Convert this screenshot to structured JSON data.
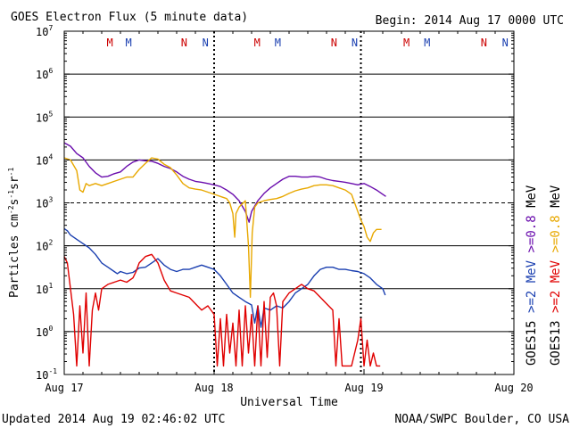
{
  "chart_data": {
    "type": "line",
    "title": "GOES Electron Flux (5 minute data)",
    "begin_label": "Begin: 2014 Aug 17 0000 UTC",
    "xlabel": "Universal Time",
    "ylabel": "Particles cm",
    "ylabel_sup1": "-2",
    "ylabel_mid1": "s",
    "ylabel_sup2": "-1",
    "ylabel_mid2": "sr",
    "ylabel_sup3": "-1",
    "xlim": [
      0,
      72
    ],
    "ylim_log10": [
      -1,
      7
    ],
    "x_ticks": [
      {
        "t": 0,
        "label": "Aug 17"
      },
      {
        "t": 24,
        "label": "Aug 18"
      },
      {
        "t": 48,
        "label": "Aug 19"
      },
      {
        "t": 72,
        "label": "Aug 20"
      }
    ],
    "y_ticks": [
      {
        "exp": 7,
        "base": "10",
        "sup": "7"
      },
      {
        "exp": 6,
        "base": "10",
        "sup": "6"
      },
      {
        "exp": 5,
        "base": "10",
        "sup": "5"
      },
      {
        "exp": 4,
        "base": "10",
        "sup": "4"
      },
      {
        "exp": 3,
        "base": "10",
        "sup": "3"
      },
      {
        "exp": 2,
        "base": "10",
        "sup": "2"
      },
      {
        "exp": 1,
        "base": "10",
        "sup": "1"
      },
      {
        "exp": 0,
        "base": "10",
        "sup": "0"
      },
      {
        "exp": -1,
        "base": "10",
        "sup": "-1"
      }
    ],
    "solid_gridlines_exp": [
      6,
      5,
      4,
      2,
      1,
      0
    ],
    "dashed_gridline_exp": 3,
    "day_dividers_t": [
      24,
      47.5
    ],
    "noon_markers": [
      {
        "t": 7.3,
        "label": "M",
        "color": "#cc0000"
      },
      {
        "t": 10.3,
        "label": "M",
        "color": "#1a3fb0"
      },
      {
        "t": 19.2,
        "label": "N",
        "color": "#cc0000"
      },
      {
        "t": 22.6,
        "label": "N",
        "color": "#1a3fb0"
      },
      {
        "t": 30.9,
        "label": "M",
        "color": "#cc0000"
      },
      {
        "t": 34.2,
        "label": "M",
        "color": "#1a3fb0"
      },
      {
        "t": 43.2,
        "label": "N",
        "color": "#cc0000"
      },
      {
        "t": 46.5,
        "label": "N",
        "color": "#1a3fb0"
      },
      {
        "t": 54.8,
        "label": "M",
        "color": "#cc0000"
      },
      {
        "t": 58.1,
        "label": "M",
        "color": "#1a3fb0"
      },
      {
        "t": 67.2,
        "label": "N",
        "color": "#cc0000"
      },
      {
        "t": 70.6,
        "label": "N",
        "color": "#1a3fb0"
      }
    ],
    "series": [
      {
        "name": "GOES15 >=0.8 MeV",
        "color": "#6a0dad",
        "points": [
          [
            0,
            4.4
          ],
          [
            1,
            4.32
          ],
          [
            2,
            4.15
          ],
          [
            3,
            4.05
          ],
          [
            4,
            3.85
          ],
          [
            5,
            3.7
          ],
          [
            6,
            3.6
          ],
          [
            7,
            3.62
          ],
          [
            8,
            3.68
          ],
          [
            9,
            3.72
          ],
          [
            10,
            3.85
          ],
          [
            11,
            3.95
          ],
          [
            12,
            4.0
          ],
          [
            13,
            3.98
          ],
          [
            14,
            3.97
          ],
          [
            15,
            3.92
          ],
          [
            16,
            3.85
          ],
          [
            17,
            3.8
          ],
          [
            18,
            3.72
          ],
          [
            19,
            3.62
          ],
          [
            20,
            3.55
          ],
          [
            21,
            3.5
          ],
          [
            22,
            3.48
          ],
          [
            23,
            3.45
          ],
          [
            24,
            3.42
          ],
          [
            25,
            3.38
          ],
          [
            26,
            3.3
          ],
          [
            27,
            3.2
          ],
          [
            28,
            3.05
          ],
          [
            29,
            2.8
          ],
          [
            29.6,
            2.55
          ],
          [
            30,
            2.8
          ],
          [
            31,
            3.05
          ],
          [
            32,
            3.22
          ],
          [
            33,
            3.35
          ],
          [
            34,
            3.45
          ],
          [
            35,
            3.55
          ],
          [
            36,
            3.62
          ],
          [
            37,
            3.62
          ],
          [
            38,
            3.6
          ],
          [
            39,
            3.6
          ],
          [
            40,
            3.62
          ],
          [
            41,
            3.6
          ],
          [
            42,
            3.55
          ],
          [
            43,
            3.52
          ],
          [
            44,
            3.5
          ],
          [
            45,
            3.48
          ],
          [
            46,
            3.45
          ],
          [
            47,
            3.42
          ],
          [
            48,
            3.45
          ],
          [
            49,
            3.38
          ],
          [
            50,
            3.3
          ],
          [
            51,
            3.2
          ],
          [
            51.5,
            3.15
          ]
        ]
      },
      {
        "name": "GOES13 >=0.8 MeV",
        "color": "#e8a800",
        "points": [
          [
            0,
            4.05
          ],
          [
            1,
            4.0
          ],
          [
            2,
            3.75
          ],
          [
            2.5,
            3.3
          ],
          [
            3,
            3.25
          ],
          [
            3.5,
            3.45
          ],
          [
            4,
            3.4
          ],
          [
            5,
            3.45
          ],
          [
            6,
            3.4
          ],
          [
            7,
            3.45
          ],
          [
            8,
            3.5
          ],
          [
            9,
            3.55
          ],
          [
            10,
            3.6
          ],
          [
            11,
            3.6
          ],
          [
            12,
            3.78
          ],
          [
            13,
            3.92
          ],
          [
            14,
            4.05
          ],
          [
            15,
            4.02
          ],
          [
            16,
            3.9
          ],
          [
            17,
            3.82
          ],
          [
            18,
            3.65
          ],
          [
            19,
            3.45
          ],
          [
            20,
            3.35
          ],
          [
            21,
            3.32
          ],
          [
            22,
            3.3
          ],
          [
            23,
            3.25
          ],
          [
            24,
            3.2
          ],
          [
            25,
            3.15
          ],
          [
            26,
            3.1
          ],
          [
            26.5,
            3.0
          ],
          [
            27,
            2.75
          ],
          [
            27.3,
            2.2
          ],
          [
            27.5,
            2.75
          ],
          [
            28,
            2.9
          ],
          [
            29,
            3.05
          ],
          [
            29.5,
            2.0
          ],
          [
            29.8,
            0.8
          ],
          [
            30.1,
            2.3
          ],
          [
            30.5,
            2.9
          ],
          [
            31,
            3.0
          ],
          [
            32,
            3.05
          ],
          [
            33,
            3.08
          ],
          [
            34,
            3.1
          ],
          [
            35,
            3.15
          ],
          [
            36,
            3.22
          ],
          [
            37,
            3.28
          ],
          [
            38,
            3.32
          ],
          [
            39,
            3.35
          ],
          [
            40,
            3.4
          ],
          [
            41,
            3.42
          ],
          [
            42,
            3.42
          ],
          [
            43,
            3.4
          ],
          [
            44,
            3.35
          ],
          [
            45,
            3.3
          ],
          [
            46,
            3.2
          ],
          [
            46.5,
            3.0
          ],
          [
            47,
            2.8
          ],
          [
            47.5,
            2.6
          ],
          [
            48,
            2.45
          ],
          [
            48.5,
            2.2
          ],
          [
            49,
            2.1
          ],
          [
            49.5,
            2.3
          ],
          [
            50,
            2.38
          ],
          [
            50.8,
            2.38
          ]
        ]
      },
      {
        "name": "GOES15 >=2 MeV",
        "color": "#1a3fb0",
        "points": [
          [
            0,
            2.4
          ],
          [
            0.5,
            2.35
          ],
          [
            1,
            2.25
          ],
          [
            2,
            2.15
          ],
          [
            3,
            2.05
          ],
          [
            4,
            1.95
          ],
          [
            5,
            1.8
          ],
          [
            6,
            1.6
          ],
          [
            7,
            1.5
          ],
          [
            8,
            1.4
          ],
          [
            8.5,
            1.35
          ],
          [
            9,
            1.4
          ],
          [
            10,
            1.35
          ],
          [
            11,
            1.38
          ],
          [
            12,
            1.48
          ],
          [
            13,
            1.5
          ],
          [
            14,
            1.6
          ],
          [
            15,
            1.7
          ],
          [
            16,
            1.55
          ],
          [
            17,
            1.45
          ],
          [
            18,
            1.4
          ],
          [
            19,
            1.45
          ],
          [
            20,
            1.45
          ],
          [
            21,
            1.5
          ],
          [
            22,
            1.55
          ],
          [
            23,
            1.5
          ],
          [
            24,
            1.45
          ],
          [
            25,
            1.3
          ],
          [
            26,
            1.1
          ],
          [
            27,
            0.9
          ],
          [
            28,
            0.8
          ],
          [
            29,
            0.7
          ],
          [
            30,
            0.62
          ],
          [
            30.5,
            0.2
          ],
          [
            31,
            0.6
          ],
          [
            31.5,
            0.1
          ],
          [
            32,
            0.55
          ],
          [
            33,
            0.5
          ],
          [
            34,
            0.6
          ],
          [
            35,
            0.55
          ],
          [
            36,
            0.7
          ],
          [
            37,
            0.9
          ],
          [
            38,
            1.0
          ],
          [
            39,
            1.1
          ],
          [
            40,
            1.3
          ],
          [
            41,
            1.45
          ],
          [
            42,
            1.5
          ],
          [
            43,
            1.5
          ],
          [
            44,
            1.45
          ],
          [
            45,
            1.45
          ],
          [
            46,
            1.42
          ],
          [
            47,
            1.4
          ],
          [
            48,
            1.35
          ],
          [
            49,
            1.25
          ],
          [
            50,
            1.1
          ],
          [
            51,
            1.0
          ],
          [
            51.4,
            0.85
          ]
        ]
      },
      {
        "name": "GOES13 >=2 MeV",
        "color": "#e00000",
        "points": [
          [
            0,
            1.75
          ],
          [
            0.5,
            1.6
          ],
          [
            1,
            1.0
          ],
          [
            1.5,
            0.4
          ],
          [
            2,
            -0.8
          ],
          [
            2.5,
            0.6
          ],
          [
            3,
            -0.5
          ],
          [
            3.5,
            0.9
          ],
          [
            4,
            -0.8
          ],
          [
            4.5,
            0.5
          ],
          [
            5,
            0.9
          ],
          [
            5.5,
            0.5
          ],
          [
            6,
            1.0
          ],
          [
            7,
            1.1
          ],
          [
            8,
            1.15
          ],
          [
            9,
            1.2
          ],
          [
            10,
            1.15
          ],
          [
            11,
            1.25
          ],
          [
            11.5,
            1.4
          ],
          [
            12,
            1.6
          ],
          [
            13,
            1.75
          ],
          [
            14,
            1.8
          ],
          [
            15,
            1.6
          ],
          [
            16,
            1.2
          ],
          [
            17,
            0.95
          ],
          [
            18,
            0.9
          ],
          [
            19,
            0.85
          ],
          [
            20,
            0.8
          ],
          [
            21,
            0.65
          ],
          [
            22,
            0.5
          ],
          [
            23,
            0.6
          ],
          [
            24,
            0.4
          ],
          [
            24.5,
            -0.8
          ],
          [
            25,
            0.3
          ],
          [
            25.5,
            -0.8
          ],
          [
            26,
            0.4
          ],
          [
            26.5,
            -0.5
          ],
          [
            27,
            0.2
          ],
          [
            27.5,
            -0.8
          ],
          [
            28,
            0.5
          ],
          [
            28.5,
            -0.8
          ],
          [
            29,
            0.6
          ],
          [
            29.5,
            -0.5
          ],
          [
            30,
            0.4
          ],
          [
            30.5,
            -0.8
          ],
          [
            31,
            0.6
          ],
          [
            31.5,
            -0.8
          ],
          [
            32,
            0.7
          ],
          [
            32.5,
            -0.6
          ],
          [
            33,
            0.8
          ],
          [
            33.5,
            0.9
          ],
          [
            34,
            0.6
          ],
          [
            34.5,
            -0.8
          ],
          [
            35,
            0.7
          ],
          [
            36,
            0.9
          ],
          [
            37,
            1.0
          ],
          [
            38,
            1.1
          ],
          [
            39,
            1.0
          ],
          [
            40,
            0.95
          ],
          [
            41,
            0.8
          ],
          [
            42,
            0.65
          ],
          [
            43,
            0.5
          ],
          [
            43.5,
            -0.8
          ],
          [
            44,
            0.3
          ],
          [
            44.5,
            -0.8
          ],
          [
            45,
            -0.8
          ],
          [
            46,
            -0.8
          ],
          [
            47,
            -0.2
          ],
          [
            47.5,
            0.3
          ],
          [
            48,
            -0.8
          ],
          [
            48.5,
            -0.2
          ],
          [
            49,
            -0.8
          ],
          [
            49.5,
            -0.5
          ],
          [
            50,
            -0.8
          ],
          [
            50.6,
            -0.8
          ]
        ]
      }
    ],
    "right_legend": [
      {
        "sat": "GOES15",
        "energy1": ">=2",
        "energy2": ">=0.8",
        "unit": "MeV",
        "c1": "#1a3fb0",
        "c2": "#6a0dad"
      },
      {
        "sat": "GOES13",
        "energy1": ">=2",
        "energy2": ">=0.8",
        "unit": "MeV",
        "c1": "#e00000",
        "c2": "#e8a800"
      }
    ]
  },
  "footer": {
    "updated": "Updated 2014 Aug 19 02:46:02 UTC",
    "credit": "NOAA/SWPC Boulder, CO USA"
  }
}
